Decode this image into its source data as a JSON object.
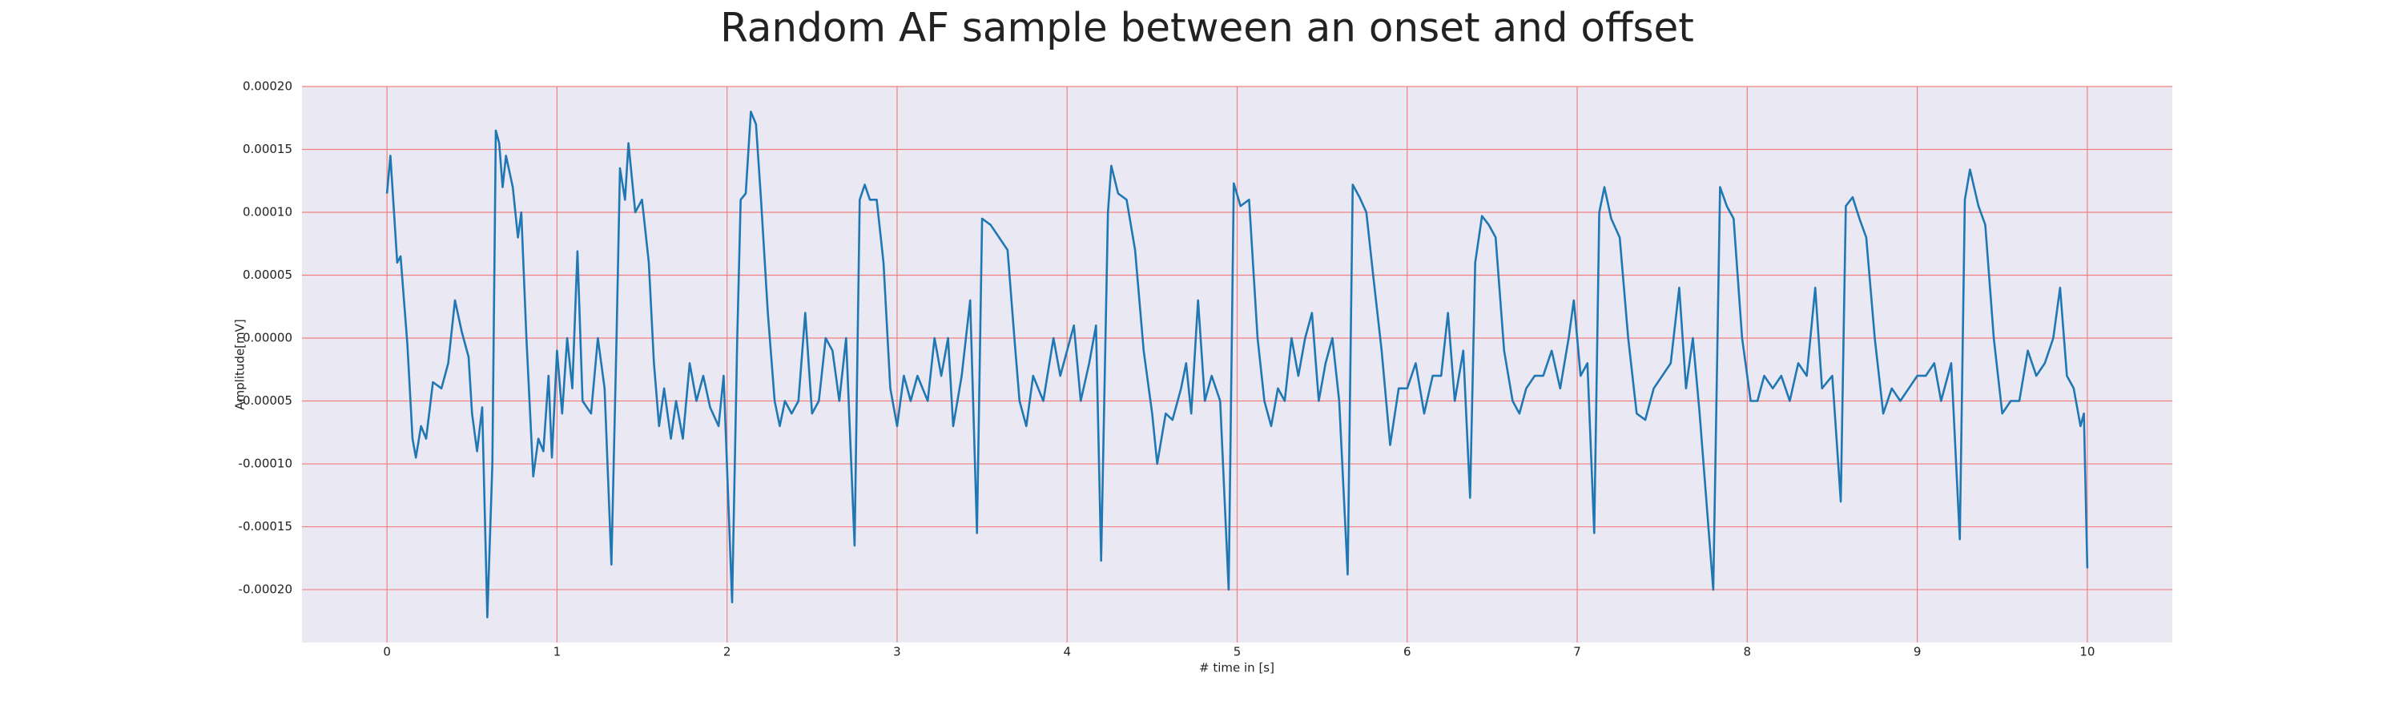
{
  "chart_data": {
    "type": "line",
    "title": "Random AF sample between an onset and offset",
    "x_label": "# time in [s]",
    "y_label": "Amplitude[mV]",
    "xlim": [
      -0.5,
      10.5
    ],
    "ylim": [
      -0.000242,
      0.0002
    ],
    "xticks": [
      0,
      1,
      2,
      3,
      4,
      5,
      6,
      7,
      8,
      9,
      10
    ],
    "yticks": [
      {
        "value": -0.0002,
        "label": "-0.00020"
      },
      {
        "value": -0.00015,
        "label": "-0.00015"
      },
      {
        "value": -0.0001,
        "label": "-0.00010"
      },
      {
        "value": -5e-05,
        "label": "-0.00005"
      },
      {
        "value": 0,
        "label": "0.00000"
      },
      {
        "value": 5e-05,
        "label": "0.00005"
      },
      {
        "value": 0.0001,
        "label": "0.00010"
      },
      {
        "value": 0.00015,
        "label": "0.00015"
      },
      {
        "value": 0.0002,
        "label": "0.00020"
      }
    ],
    "grid": true,
    "grid_color": "#f08080",
    "background": "#eae8f2",
    "series": [
      {
        "color": "#1f77b4",
        "x": [
          0,
          0.02,
          0.06,
          0.08,
          0.12,
          0.15,
          0.17,
          0.2,
          0.23,
          0.27,
          0.32,
          0.36,
          0.4,
          0.44,
          0.48,
          0.5,
          0.53,
          0.56,
          0.59,
          0.62,
          0.64,
          0.66,
          0.68,
          0.7,
          0.74,
          0.77,
          0.79,
          0.82,
          0.86,
          0.89,
          0.92,
          0.95,
          0.97,
          1.0,
          1.03,
          1.06,
          1.09,
          1.12,
          1.15,
          1.2,
          1.24,
          1.28,
          1.32,
          1.35,
          1.37,
          1.4,
          1.42,
          1.46,
          1.5,
          1.54,
          1.57,
          1.6,
          1.63,
          1.67,
          1.7,
          1.74,
          1.78,
          1.82,
          1.86,
          1.9,
          1.95,
          1.98,
          2.03,
          2.06,
          2.08,
          2.11,
          2.14,
          2.17,
          2.2,
          2.24,
          2.28,
          2.31,
          2.34,
          2.38,
          2.42,
          2.46,
          2.5,
          2.54,
          2.58,
          2.62,
          2.66,
          2.7,
          2.75,
          2.78,
          2.81,
          2.84,
          2.88,
          2.92,
          2.96,
          3.0,
          3.04,
          3.08,
          3.12,
          3.18,
          3.22,
          3.26,
          3.3,
          3.33,
          3.38,
          3.43,
          3.47,
          3.5,
          3.55,
          3.6,
          3.65,
          3.69,
          3.72,
          3.76,
          3.8,
          3.86,
          3.92,
          3.96,
          4.0,
          4.04,
          4.08,
          4.13,
          4.17,
          4.2,
          4.24,
          4.26,
          4.3,
          4.35,
          4.4,
          4.45,
          4.5,
          4.53,
          4.58,
          4.62,
          4.67,
          4.7,
          4.73,
          4.77,
          4.81,
          4.85,
          4.9,
          4.95,
          4.98,
          5.02,
          5.07,
          5.12,
          5.16,
          5.2,
          5.24,
          5.28,
          5.32,
          5.36,
          5.4,
          5.44,
          5.48,
          5.52,
          5.56,
          5.6,
          5.65,
          5.68,
          5.72,
          5.76,
          5.8,
          5.85,
          5.9,
          5.95,
          6.0,
          6.05,
          6.1,
          6.15,
          6.2,
          6.24,
          6.28,
          6.33,
          6.37,
          6.4,
          6.44,
          6.48,
          6.52,
          6.57,
          6.62,
          6.66,
          6.7,
          6.75,
          6.8,
          6.85,
          6.9,
          6.95,
          6.98,
          7.02,
          7.06,
          7.1,
          7.13,
          7.16,
          7.2,
          7.25,
          7.3,
          7.35,
          7.4,
          7.45,
          7.5,
          7.55,
          7.6,
          7.64,
          7.68,
          7.72,
          7.8,
          7.84,
          7.88,
          7.92,
          7.97,
          8.02,
          8.06,
          8.1,
          8.15,
          8.2,
          8.25,
          8.3,
          8.35,
          8.4,
          8.44,
          8.5,
          8.55,
          8.58,
          8.62,
          8.66,
          8.7,
          8.75,
          8.8,
          8.85,
          8.9,
          8.95,
          9.0,
          9.05,
          9.1,
          9.14,
          9.2,
          9.25,
          9.28,
          9.31,
          9.36,
          9.4,
          9.45,
          9.5,
          9.55,
          9.6,
          9.65,
          9.7,
          9.75,
          9.8,
          9.84,
          9.88,
          9.92,
          9.96,
          9.98,
          10.0
        ],
        "values": [
          0.000115,
          0.000145,
          6e-05,
          6.5e-05,
          -5e-06,
          -8e-05,
          -9.5e-05,
          -7e-05,
          -8e-05,
          -3.5e-05,
          -4e-05,
          -2e-05,
          3e-05,
          5e-06,
          -1.5e-05,
          -6e-05,
          -9e-05,
          -5.5e-05,
          -0.000222,
          -0.0001,
          0.000165,
          0.000155,
          0.00012,
          0.000145,
          0.00012,
          8e-05,
          0.0001,
          0,
          -0.00011,
          -8e-05,
          -9e-05,
          -3e-05,
          -9.5e-05,
          -1e-05,
          -6e-05,
          0,
          -4e-05,
          6.9e-05,
          -5e-05,
          -6e-05,
          0,
          -4e-05,
          -0.00018,
          0,
          0.000135,
          0.00011,
          0.000155,
          0.0001,
          0.00011,
          6e-05,
          -2e-05,
          -7e-05,
          -4e-05,
          -8e-05,
          -5e-05,
          -8e-05,
          -2e-05,
          -5e-05,
          -3e-05,
          -5.5e-05,
          -7e-05,
          -3e-05,
          -0.00021,
          0,
          0.00011,
          0.000115,
          0.00018,
          0.00017,
          0.00011,
          2e-05,
          -5e-05,
          -7e-05,
          -5e-05,
          -6e-05,
          -5e-05,
          2e-05,
          -6e-05,
          -5e-05,
          0,
          -1e-05,
          -5e-05,
          0,
          -0.000165,
          0.00011,
          0.000122,
          0.00011,
          0.00011,
          6e-05,
          -4e-05,
          -7e-05,
          -3e-05,
          -5e-05,
          -3e-05,
          -5e-05,
          0,
          -3e-05,
          0,
          -7e-05,
          -3e-05,
          3e-05,
          -0.000155,
          9.5e-05,
          9e-05,
          8e-05,
          7e-05,
          0,
          -5e-05,
          -7e-05,
          -3e-05,
          -5e-05,
          0,
          -3e-05,
          -1e-05,
          1e-05,
          -5e-05,
          -2e-05,
          1e-05,
          -0.000177,
          0.0001,
          0.000137,
          0.000115,
          0.00011,
          7e-05,
          -1e-05,
          -6e-05,
          -0.0001,
          -6e-05,
          -6.5e-05,
          -4e-05,
          -2e-05,
          -6e-05,
          3e-05,
          -5e-05,
          -3e-05,
          -5e-05,
          -0.0002,
          0.000123,
          0.000105,
          0.00011,
          0,
          -5e-05,
          -7e-05,
          -4e-05,
          -5e-05,
          0,
          -3e-05,
          0,
          2e-05,
          -5e-05,
          -2e-05,
          0,
          -5e-05,
          -0.000188,
          0.000122,
          0.000112,
          0.0001,
          5e-05,
          -1e-05,
          -8.5e-05,
          -4e-05,
          -4e-05,
          -2e-05,
          -6e-05,
          -3e-05,
          -3e-05,
          2e-05,
          -5e-05,
          -1e-05,
          -0.000127,
          6e-05,
          9.7e-05,
          9e-05,
          8e-05,
          -1e-05,
          -5e-05,
          -6e-05,
          -4e-05,
          -3e-05,
          -3e-05,
          -1e-05,
          -4e-05,
          0,
          3e-05,
          -3e-05,
          -2e-05,
          -0.000155,
          0.0001,
          0.00012,
          9.5e-05,
          8e-05,
          0,
          -6e-05,
          -6.5e-05,
          -4e-05,
          -3e-05,
          -2e-05,
          4e-05,
          -4e-05,
          0,
          -6e-05,
          -0.0002,
          0.00012,
          0.000105,
          9.5e-05,
          0,
          -5e-05,
          -5e-05,
          -3e-05,
          -4e-05,
          -3e-05,
          -5e-05,
          -2e-05,
          -3e-05,
          4e-05,
          -4e-05,
          -3e-05,
          -0.00013,
          0.000105,
          0.000112,
          9.5e-05,
          8e-05,
          0,
          -6e-05,
          -4e-05,
          -5e-05,
          -4e-05,
          -3e-05,
          -3e-05,
          -2e-05,
          -5e-05,
          -2e-05,
          -0.00016,
          0.00011,
          0.000134,
          0.000105,
          9e-05,
          0,
          -6e-05,
          -5e-05,
          -5e-05,
          -1e-05,
          -3e-05,
          -2e-05,
          0,
          4e-05,
          -3e-05,
          -4e-05,
          -7e-05,
          -6e-05,
          -0.000183
        ]
      }
    ]
  }
}
